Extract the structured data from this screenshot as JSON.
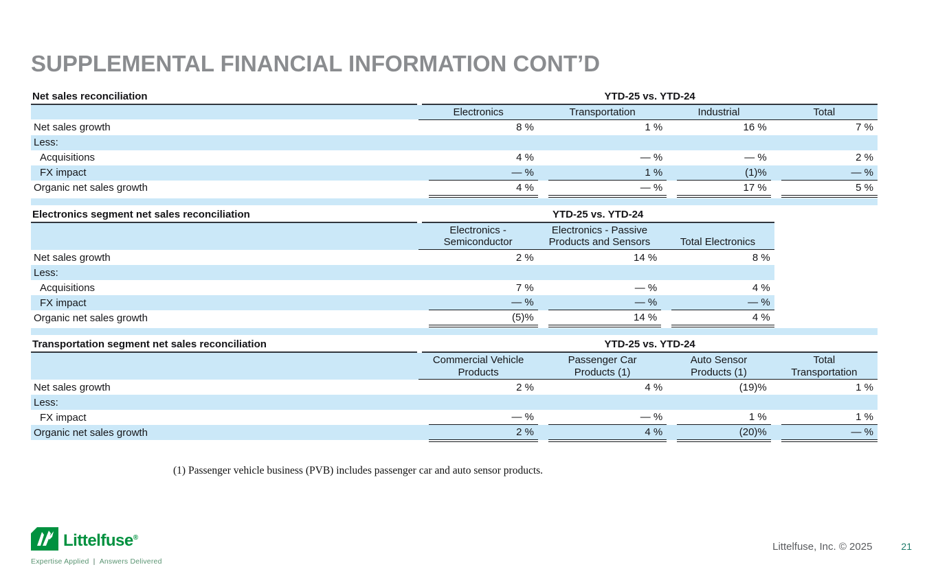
{
  "title": "SUPPLEMENTAL FINANCIAL INFORMATION CONT’D",
  "tables": [
    {
      "name": "Net sales reconciliation",
      "period": "YTD-25 vs. YTD-24",
      "columns": [
        "Electronics",
        "Transportation",
        "Industrial",
        "Total"
      ],
      "rows": [
        {
          "label": "Net sales growth",
          "indent": false,
          "shaded": false,
          "rule": "",
          "values": [
            "8 %",
            "1 %",
            "16 %",
            "7 %"
          ]
        },
        {
          "label": "Less:",
          "indent": false,
          "shaded": true,
          "rule": "",
          "values": [
            "",
            "",
            "",
            ""
          ]
        },
        {
          "label": "Acquisitions",
          "indent": true,
          "shaded": false,
          "rule": "",
          "values": [
            "4 %",
            "— %",
            "— %",
            "2 %"
          ]
        },
        {
          "label": "FX impact",
          "indent": true,
          "shaded": true,
          "rule": "single",
          "values": [
            "— %",
            "1 %",
            "(1)%",
            "— %"
          ]
        },
        {
          "label": "Organic net sales growth",
          "indent": false,
          "shaded": false,
          "rule": "double",
          "values": [
            "4 %",
            "— %",
            "17 %",
            "5 %"
          ]
        }
      ]
    },
    {
      "name": "Electronics segment net sales reconciliation",
      "period": "YTD-25 vs. YTD-24",
      "columns": [
        "Electronics -\nSemiconductor",
        "Electronics - Passive\nProducts and Sensors",
        "Total Electronics"
      ],
      "rows": [
        {
          "label": "Net sales growth",
          "indent": false,
          "shaded": false,
          "rule": "",
          "values": [
            "2 %",
            "14 %",
            "8 %"
          ]
        },
        {
          "label": "Less:",
          "indent": false,
          "shaded": true,
          "rule": "",
          "values": [
            "",
            "",
            ""
          ]
        },
        {
          "label": "Acquisitions",
          "indent": true,
          "shaded": false,
          "rule": "",
          "values": [
            "7 %",
            "— %",
            "4 %"
          ]
        },
        {
          "label": "FX impact",
          "indent": true,
          "shaded": true,
          "rule": "single",
          "values": [
            "— %",
            "— %",
            "— %"
          ]
        },
        {
          "label": "Organic net sales growth",
          "indent": false,
          "shaded": false,
          "rule": "double",
          "values": [
            "(5)%",
            "14 %",
            "4 %"
          ]
        }
      ]
    },
    {
      "name": "Transportation segment net sales reconciliation",
      "period": "YTD-25 vs. YTD-24",
      "columns": [
        "Commercial Vehicle\nProducts",
        "Passenger Car\nProducts (1)",
        "Auto Sensor\nProducts (1)",
        "Total\nTransportation"
      ],
      "rows": [
        {
          "label": "Net sales growth",
          "indent": false,
          "shaded": false,
          "rule": "",
          "values": [
            "2 %",
            "4 %",
            "(19)%",
            "1 %"
          ]
        },
        {
          "label": "Less:",
          "indent": false,
          "shaded": true,
          "rule": "",
          "values": [
            "",
            "",
            "",
            ""
          ]
        },
        {
          "label": "FX impact",
          "indent": true,
          "shaded": false,
          "rule": "single",
          "values": [
            "— %",
            "— %",
            "1 %",
            "1 %"
          ]
        },
        {
          "label": "Organic net sales growth",
          "indent": false,
          "shaded": true,
          "rule": "double",
          "values": [
            "2 %",
            "4 %",
            "(20)%",
            "— %"
          ]
        }
      ]
    }
  ],
  "footnote": "(1) Passenger vehicle business (PVB) includes passenger car and auto sensor products.",
  "logo": {
    "brand": "Littelfuse",
    "registered": "®",
    "tagline_left": "Expertise Applied",
    "tagline_sep": "|",
    "tagline_right": "Answers Delivered"
  },
  "footer": {
    "copyright": "Littelfuse, Inc. © 2025",
    "page": "21"
  },
  "colors": {
    "stripe_blue": "#cbe8f8",
    "title_gray": "#8a8c8f",
    "brand_green": "#00913f",
    "page_teal": "#1e7a6a",
    "rule_dark": "#31363d"
  }
}
